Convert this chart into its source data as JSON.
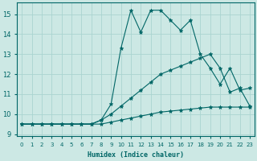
{
  "xlabel": "Humidex (Indice chaleur)",
  "background_color": "#cce8e4",
  "grid_color": "#aad4d0",
  "line_color": "#006666",
  "xlim": [
    -0.5,
    23.5
  ],
  "ylim": [
    8.9,
    15.6
  ],
  "yticks": [
    9,
    10,
    11,
    12,
    13,
    14,
    15
  ],
  "xticks": [
    0,
    1,
    2,
    3,
    4,
    5,
    6,
    7,
    8,
    9,
    10,
    11,
    12,
    13,
    14,
    15,
    16,
    17,
    18,
    19,
    20,
    21,
    22,
    23
  ],
  "series1_x": [
    0,
    1,
    2,
    3,
    4,
    5,
    6,
    7,
    8,
    9,
    10,
    11,
    12,
    13,
    14,
    15,
    16,
    17,
    18,
    19,
    20,
    21,
    22,
    23
  ],
  "series1_y": [
    9.5,
    9.5,
    9.5,
    9.5,
    9.5,
    9.5,
    9.5,
    9.5,
    9.5,
    9.6,
    9.7,
    9.8,
    9.9,
    10.0,
    10.1,
    10.15,
    10.2,
    10.25,
    10.3,
    10.35,
    10.35,
    10.35,
    10.35,
    10.35
  ],
  "series2_x": [
    0,
    1,
    2,
    3,
    4,
    5,
    6,
    7,
    8,
    9,
    10,
    11,
    12,
    13,
    14,
    15,
    16,
    17,
    18,
    19,
    20,
    21,
    22,
    23
  ],
  "series2_y": [
    9.5,
    9.5,
    9.5,
    9.5,
    9.5,
    9.5,
    9.5,
    9.5,
    9.7,
    10.0,
    10.4,
    10.8,
    11.2,
    11.6,
    12.0,
    12.2,
    12.4,
    12.6,
    12.8,
    13.0,
    12.3,
    11.1,
    11.3,
    10.4
  ],
  "series3_x": [
    0,
    1,
    2,
    3,
    4,
    5,
    6,
    7,
    8,
    9,
    10,
    11,
    12,
    13,
    14,
    15,
    16,
    17,
    18,
    19,
    20,
    21,
    22,
    23
  ],
  "series3_y": [
    9.5,
    9.5,
    9.5,
    9.5,
    9.5,
    9.5,
    9.5,
    9.5,
    9.7,
    10.5,
    13.3,
    15.2,
    14.1,
    15.2,
    15.2,
    14.7,
    14.2,
    14.7,
    13.0,
    12.3,
    11.5,
    12.3,
    11.2,
    11.3
  ]
}
